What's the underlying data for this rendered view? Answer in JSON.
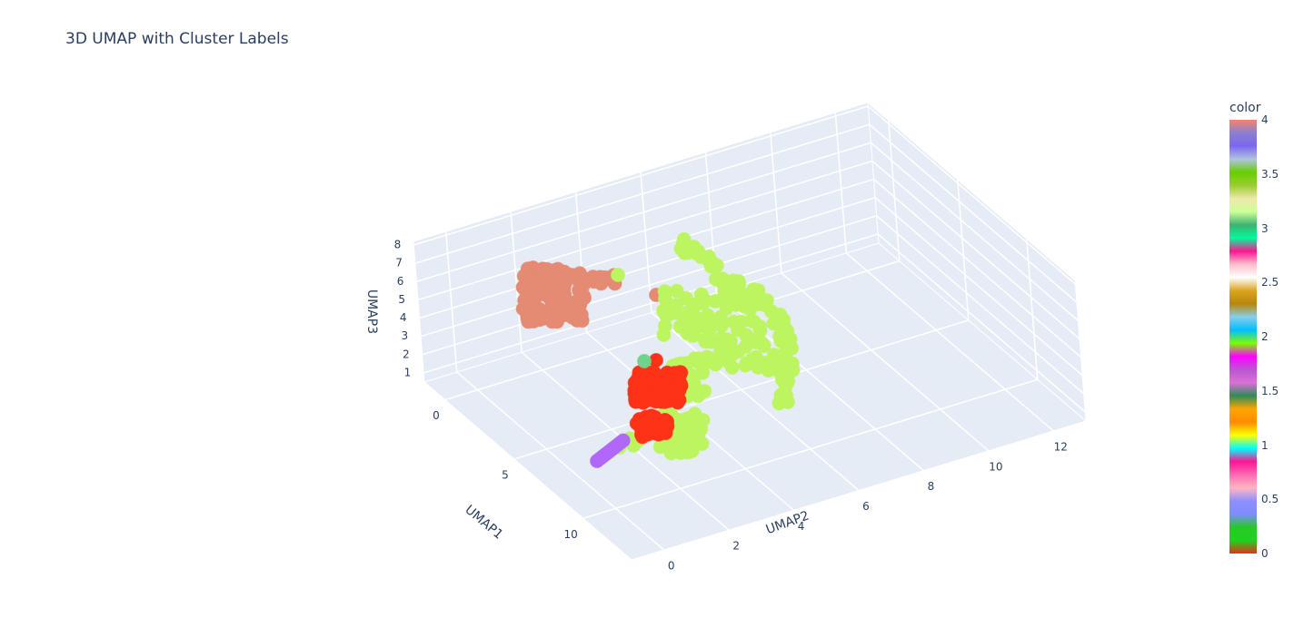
{
  "chart_data": {
    "type": "scatter3d",
    "title": "3D UMAP with Cluster Labels",
    "axes": {
      "x": {
        "label": "UMAP1",
        "ticks": [
          "0",
          "5",
          "10"
        ]
      },
      "y": {
        "label": "UMAP2",
        "ticks": [
          "0",
          "2",
          "4",
          "6",
          "8",
          "10",
          "12"
        ]
      },
      "z": {
        "label": "UMAP3",
        "ticks": [
          "1",
          "2",
          "3",
          "4",
          "5",
          "6",
          "7",
          "8"
        ]
      }
    },
    "colorbar": {
      "title": "color",
      "range": [
        0,
        4
      ],
      "ticks": [
        "0",
        "0.5",
        "1",
        "1.5",
        "2",
        "2.5",
        "3",
        "3.5",
        "4"
      ]
    },
    "clusters": [
      {
        "label": 0,
        "color": "#fd3216",
        "x_range": [
          7,
          11
        ],
        "y_range": [
          1,
          5
        ],
        "z_range": [
          1,
          4
        ]
      },
      {
        "label": 1,
        "color": "#b068f9",
        "x_range": [
          11,
          13
        ],
        "y_range": [
          0,
          2
        ],
        "z_range": [
          1,
          2
        ]
      },
      {
        "label": 2,
        "color": "#6fd38b",
        "x_range": [
          6,
          7
        ],
        "y_range": [
          3,
          4
        ],
        "z_range": [
          3,
          4
        ]
      },
      {
        "label": 3,
        "color": "#bdf561",
        "x_range": [
          0,
          11
        ],
        "y_range": [
          1,
          12
        ],
        "z_range": [
          1,
          8
        ]
      },
      {
        "label": 4,
        "color": "#e58b73",
        "x_range": [
          -1,
          3
        ],
        "y_range": [
          0,
          3
        ],
        "z_range": [
          4,
          7
        ]
      }
    ]
  }
}
